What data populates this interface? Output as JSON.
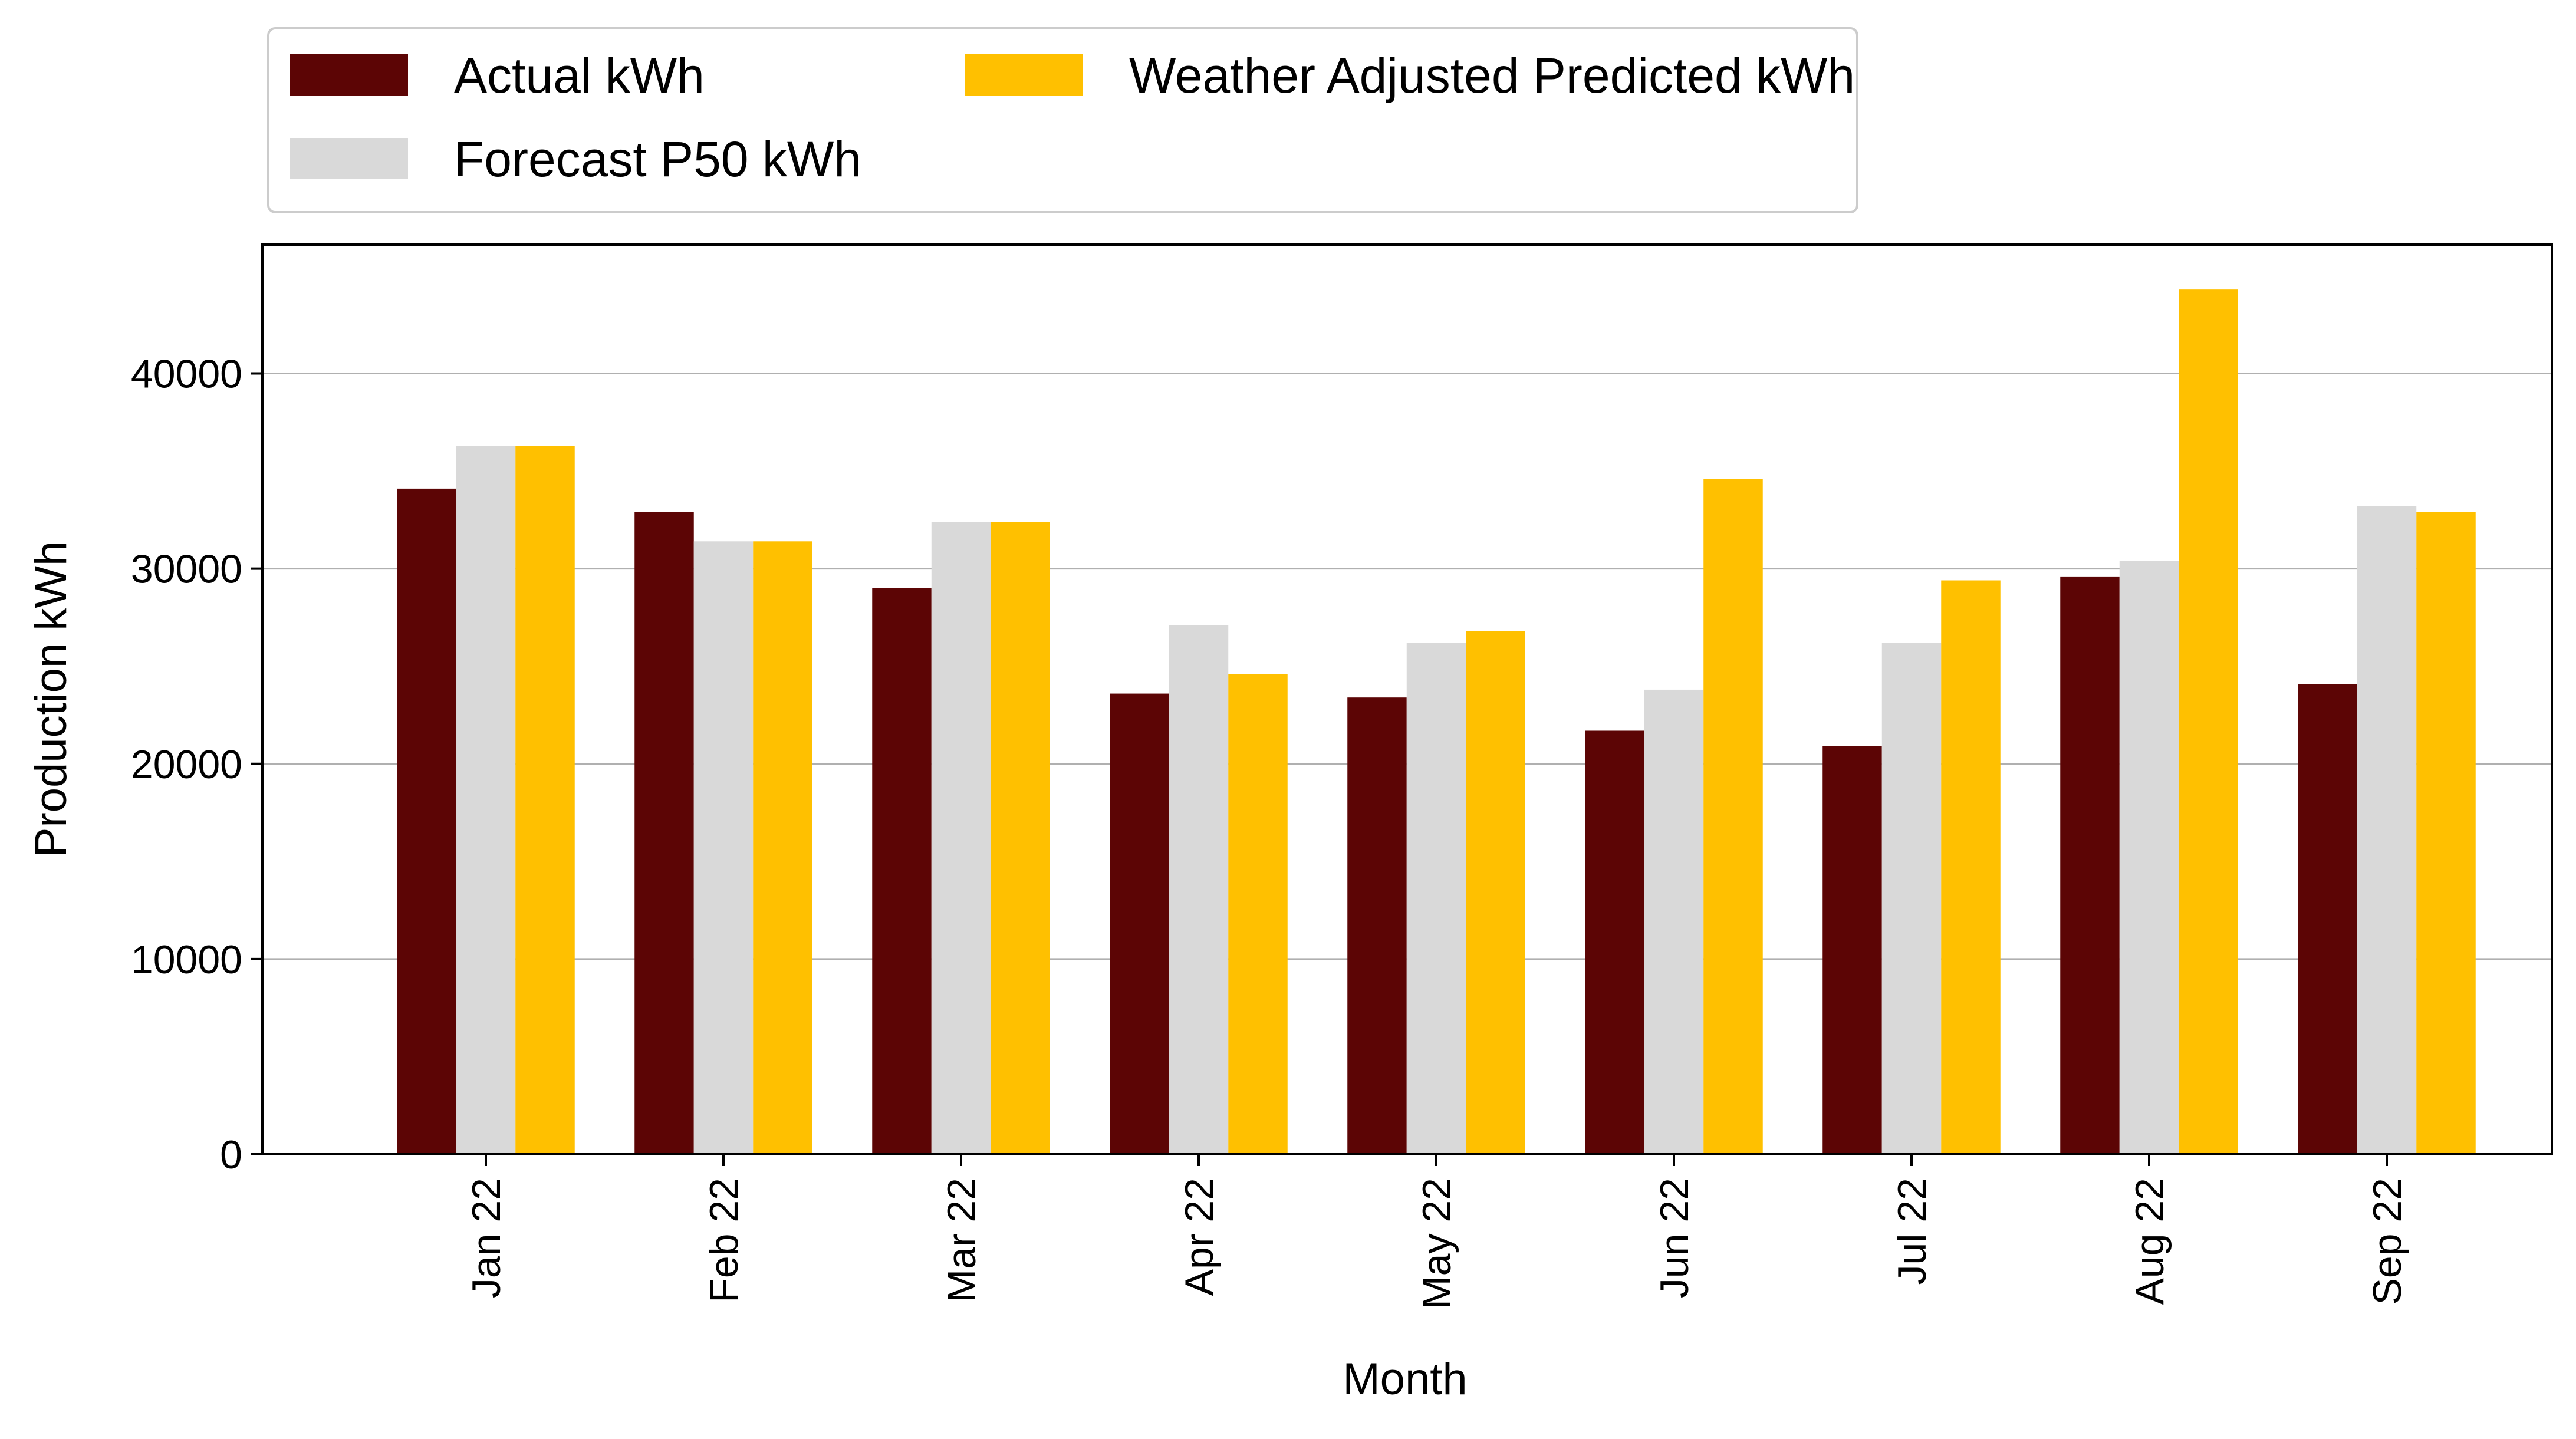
{
  "chart_data": {
    "type": "bar",
    "title": "",
    "xlabel": "Month",
    "ylabel": "Production kWh",
    "categories": [
      "Jan 22",
      "Feb 22",
      "Mar 22",
      "Apr 22",
      "May 22",
      "Jun 22",
      "Jul 22",
      "Aug 22",
      "Sep 22"
    ],
    "series": [
      {
        "name": "Actual kWh",
        "color": "#5c0505",
        "values": [
          34100,
          32900,
          29000,
          23600,
          23400,
          21700,
          20900,
          29600,
          24100
        ]
      },
      {
        "name": "Forecast P50 kWh",
        "color": "#d9d9d9",
        "values": [
          36300,
          31400,
          32400,
          27100,
          26200,
          23800,
          26200,
          30400,
          33200
        ]
      },
      {
        "name": "Weather Adjusted Predicted kWh",
        "color": "#ffc000",
        "values": [
          36300,
          31400,
          32400,
          24600,
          26800,
          34600,
          29400,
          44300,
          32900
        ]
      }
    ],
    "ylim": [
      0,
      46600
    ],
    "yticks": [
      0,
      10000,
      20000,
      30000,
      40000
    ],
    "ytick_labels": [
      "0",
      "10000",
      "20000",
      "30000",
      "40000"
    ],
    "grid": "y",
    "legend_placement": "top-left, above plot, 2 columns"
  }
}
